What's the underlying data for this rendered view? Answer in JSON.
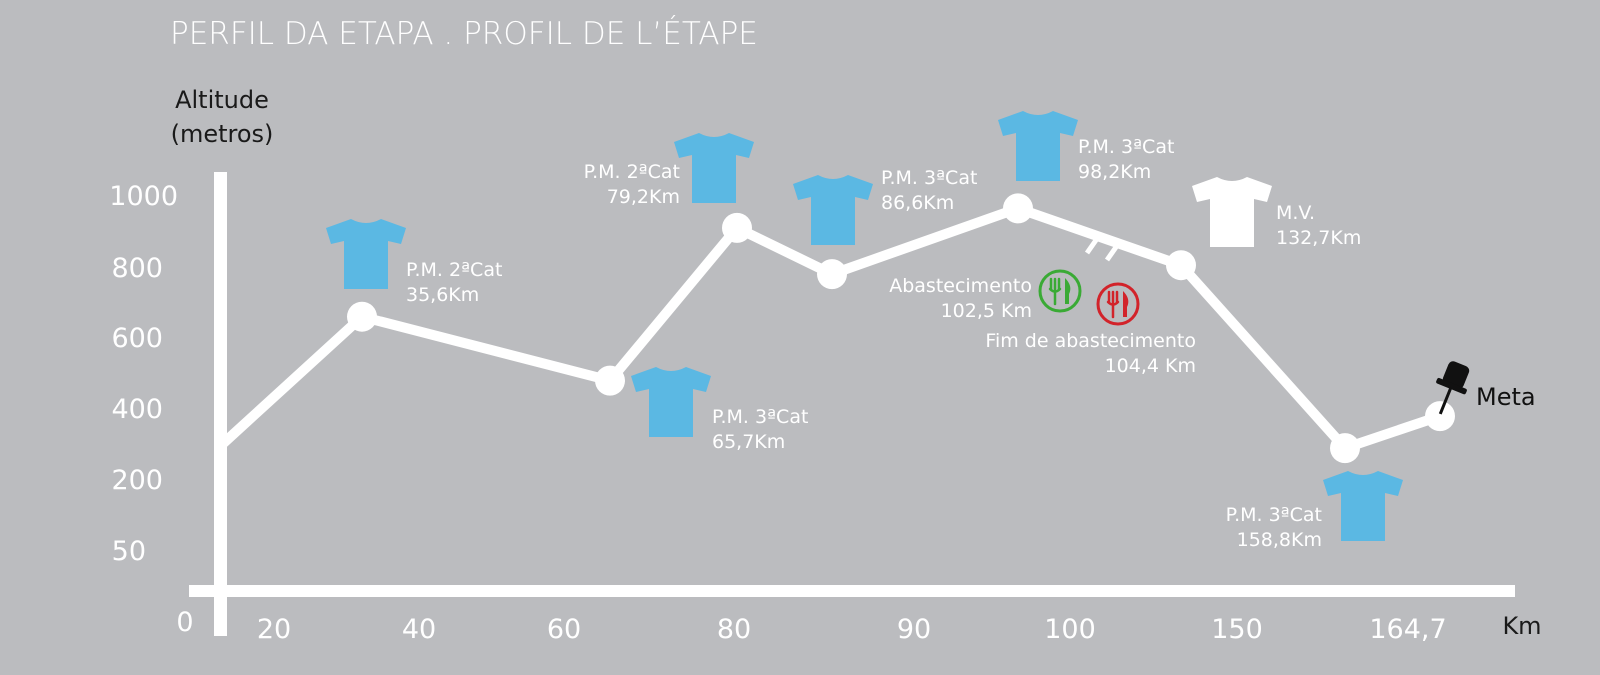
{
  "title": "PERFIL DA ETAPA .  PROFIL DE L’ÉTAPE",
  "chart_data": {
    "type": "line",
    "title": "PERFIL DA ETAPA .  PROFIL DE L’ÉTAPE",
    "ylabel": [
      "Altitude",
      "(metros)"
    ],
    "xlabel": "Km",
    "y_ticks": [
      "1000",
      "800",
      "600",
      "400",
      "200",
      "50"
    ],
    "x_ticks": [
      "0",
      "20",
      "40",
      "60",
      "80",
      "90",
      "100",
      "150",
      "164,7"
    ],
    "series": [
      {
        "points": [
          {
            "km": 0,
            "alt": 300
          },
          {
            "km": 35.6,
            "alt": 660
          },
          {
            "km": 65.7,
            "alt": 480
          },
          {
            "km": 79.2,
            "alt": 910
          },
          {
            "km": 86.6,
            "alt": 780
          },
          {
            "km": 98.2,
            "alt": 965
          },
          {
            "km": 132.7,
            "alt": 805
          },
          {
            "km": 158.8,
            "alt": 290
          },
          {
            "km": 164.7,
            "alt": 380
          }
        ]
      }
    ],
    "annotations": [
      {
        "type": "climb",
        "lines": [
          "P.M. 2ªCat",
          "35,6Km"
        ],
        "color": "#5bb8e3"
      },
      {
        "type": "climb",
        "lines": [
          "P.M. 3ªCat",
          "65,7Km"
        ],
        "color": "#5bb8e3"
      },
      {
        "type": "climb",
        "lines": [
          "P.M. 2ªCat",
          "79,2Km"
        ],
        "color": "#5bb8e3"
      },
      {
        "type": "climb",
        "lines": [
          "P.M. 3ªCat",
          "86,6Km"
        ],
        "color": "#5bb8e3"
      },
      {
        "type": "climb",
        "lines": [
          "P.M. 3ªCat",
          "98,2Km"
        ],
        "color": "#5bb8e3"
      },
      {
        "type": "sprint",
        "lines": [
          "M.V.",
          "132,7Km"
        ],
        "color": "#ffffff"
      },
      {
        "type": "climb",
        "lines": [
          "P.M. 3ªCat",
          "158,8Km"
        ],
        "color": "#5bb8e3"
      },
      {
        "type": "feed-start",
        "lines": [
          "Abastecimento",
          "102,5 Km"
        ],
        "color": "#3aaa35"
      },
      {
        "type": "feed-end",
        "lines": [
          "Fim de abastecimento",
          "104,4 Km"
        ],
        "color": "#d2232a"
      },
      {
        "type": "finish",
        "lines": [
          "Meta"
        ],
        "color": "#111111"
      }
    ]
  },
  "colors": {
    "background": "#bbbcbf",
    "line": "#ffffff",
    "climb_jersey": "#5bb8e3",
    "sprint_jersey": "#ffffff",
    "feed_start": "#3aaa35",
    "feed_end": "#d2232a"
  },
  "icons": {
    "climb": "jersey-icon",
    "sprint": "jersey-icon",
    "feed": "fork-knife-icon",
    "finish": "pushpin-icon"
  }
}
